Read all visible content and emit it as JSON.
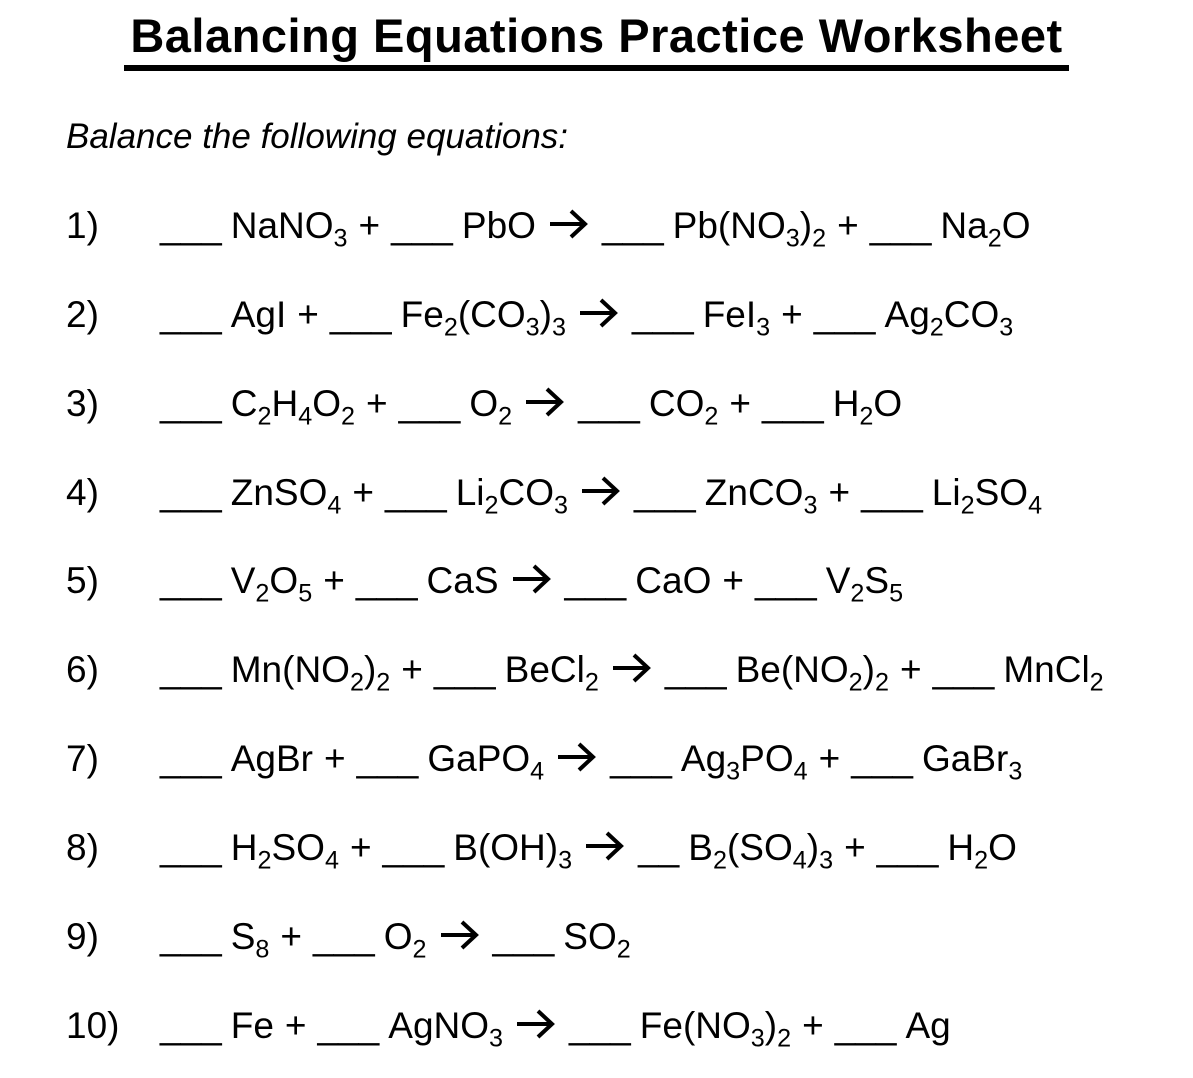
{
  "page": {
    "title": "Balancing Equations Practice Worksheet",
    "instructions": "Balance the following equations:"
  },
  "symbols": {
    "plus": "+",
    "arrow": "right-arrow"
  },
  "equations": [
    {
      "number": "1)",
      "lhs": [
        {
          "blank": "___",
          "formula": "NaNO~3~"
        },
        {
          "blank": "___",
          "formula": "PbO"
        }
      ],
      "rhs": [
        {
          "blank": "___",
          "formula": "Pb(NO~3~)~2~"
        },
        {
          "blank": "___",
          "formula": "Na~2~O"
        }
      ]
    },
    {
      "number": "2)",
      "lhs": [
        {
          "blank": "___",
          "formula": "AgI"
        },
        {
          "blank": "___",
          "formula": "Fe~2~(CO~3~)~3~"
        }
      ],
      "rhs": [
        {
          "blank": "___",
          "formula": "FeI~3~"
        },
        {
          "blank": "___",
          "formula": "Ag~2~CO~3~"
        }
      ]
    },
    {
      "number": "3)",
      "lhs": [
        {
          "blank": "___",
          "formula": "C~2~H~4~O~2~"
        },
        {
          "blank": "___",
          "formula": "O~2~"
        }
      ],
      "rhs": [
        {
          "blank": "___",
          "formula": "CO~2~"
        },
        {
          "blank": "___",
          "formula": "H~2~O"
        }
      ]
    },
    {
      "number": "4)",
      "lhs": [
        {
          "blank": "___",
          "formula": "ZnSO~4~"
        },
        {
          "blank": "___",
          "formula": "Li~2~CO~3~"
        }
      ],
      "rhs": [
        {
          "blank": "___",
          "formula": "ZnCO~3~"
        },
        {
          "blank": "___",
          "formula": "Li~2~SO~4~"
        }
      ]
    },
    {
      "number": "5)",
      "lhs": [
        {
          "blank": "___",
          "formula": "V~2~O~5~"
        },
        {
          "blank": "___",
          "formula": "CaS"
        }
      ],
      "rhs": [
        {
          "blank": "___",
          "formula": "CaO"
        },
        {
          "blank": "___",
          "formula": "V~2~S~5~"
        }
      ]
    },
    {
      "number": "6)",
      "lhs": [
        {
          "blank": "___",
          "formula": "Mn(NO~2~)~2~"
        },
        {
          "blank": "___",
          "formula": "BeCl~2~"
        }
      ],
      "rhs": [
        {
          "blank": "___",
          "formula": "Be(NO~2~)~2~"
        },
        {
          "blank": "___",
          "formula": "MnCl~2~"
        }
      ]
    },
    {
      "number": "7)",
      "lhs": [
        {
          "blank": "___",
          "formula": "AgBr"
        },
        {
          "blank": "___",
          "formula": "GaPO~4~"
        }
      ],
      "rhs": [
        {
          "blank": "___",
          "formula": "Ag~3~PO~4~"
        },
        {
          "blank": "___",
          "formula": "GaBr~3~"
        }
      ]
    },
    {
      "number": "8)",
      "lhs": [
        {
          "blank": "___",
          "formula": "H~2~SO~4~"
        },
        {
          "blank": "___",
          "formula": "B(OH)~3~"
        }
      ],
      "rhs": [
        {
          "blank": "__",
          "formula": "B~2~(SO~4~)~3~"
        },
        {
          "blank": "___",
          "formula": "H~2~O"
        }
      ]
    },
    {
      "number": "9)",
      "lhs": [
        {
          "blank": "___",
          "formula": "S~8~"
        },
        {
          "blank": "___",
          "formula": "O~2~"
        }
      ],
      "rhs": [
        {
          "blank": "___",
          "formula": "SO~2~"
        }
      ]
    },
    {
      "number": "10)",
      "lhs": [
        {
          "blank": "___",
          "formula": "Fe"
        },
        {
          "blank": "___",
          "formula": "AgNO~3~"
        }
      ],
      "rhs": [
        {
          "blank": "___",
          "formula": "Fe(NO~3~)~2~"
        },
        {
          "blank": "___",
          "formula": "Ag"
        }
      ]
    }
  ]
}
